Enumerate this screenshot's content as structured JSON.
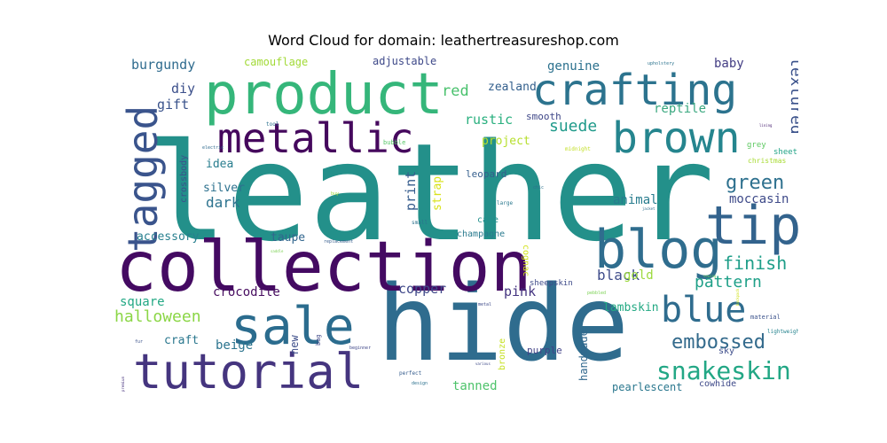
{
  "chart_data": {
    "type": "wordcloud",
    "title": "Word Cloud for domain: leathertreasureshop.com",
    "words": [
      {
        "text": "leather",
        "weight": 1.0,
        "color": "#23908a"
      },
      {
        "text": "hide",
        "weight": 0.72,
        "color": "#2f6c8e"
      },
      {
        "text": "collection",
        "weight": 0.46,
        "color": "#440a62"
      },
      {
        "text": "product",
        "weight": 0.38,
        "color": "#35b67a"
      },
      {
        "text": "crafting",
        "weight": 0.26,
        "color": "#2c738e"
      },
      {
        "text": "tutorial",
        "weight": 0.26,
        "color": "#45357f"
      },
      {
        "text": "sale",
        "weight": 0.3,
        "color": "#2b6c8e"
      },
      {
        "text": "metallic",
        "weight": 0.2,
        "color": "#45085d"
      },
      {
        "text": "brown",
        "weight": 0.22,
        "color": "#25858e"
      },
      {
        "text": "blog",
        "weight": 0.27,
        "color": "#2f6d8e"
      },
      {
        "text": "tip",
        "weight": 0.25,
        "color": "#33638d"
      },
      {
        "text": "tagged",
        "weight": 0.21,
        "color": "#3a548c"
      },
      {
        "text": "blue",
        "weight": 0.17,
        "color": "#2f6c8e"
      },
      {
        "text": "snakeskin",
        "weight": 0.12,
        "color": "#22a785"
      },
      {
        "text": "embossed",
        "weight": 0.11,
        "color": "#336a8c"
      },
      {
        "text": "finish",
        "weight": 0.1,
        "color": "#1f9e89"
      },
      {
        "text": "pattern",
        "weight": 0.09,
        "color": "#1fa088"
      },
      {
        "text": "green",
        "weight": 0.09,
        "color": "#2d708e"
      },
      {
        "text": "moccasin",
        "weight": 0.07,
        "color": "#3e4a89"
      },
      {
        "text": "textured",
        "weight": 0.08,
        "color": "#3b528b"
      },
      {
        "text": "suede",
        "weight": 0.08,
        "color": "#1f9a8a"
      },
      {
        "text": "reptile",
        "weight": 0.06,
        "color": "#3ba880"
      },
      {
        "text": "baby",
        "weight": 0.06,
        "color": "#433d84"
      },
      {
        "text": "genuine",
        "weight": 0.06,
        "color": "#2c718e"
      },
      {
        "text": "red",
        "weight": 0.07,
        "color": "#49c16d"
      },
      {
        "text": "rustic",
        "weight": 0.06,
        "color": "#2ab07f"
      },
      {
        "text": "zealand",
        "weight": 0.05,
        "color": "#34608d"
      },
      {
        "text": "smooth",
        "weight": 0.04,
        "color": "#3f4788"
      },
      {
        "text": "project",
        "weight": 0.05,
        "color": "#b5de2b"
      },
      {
        "text": "camouflage",
        "weight": 0.05,
        "color": "#a2da37"
      },
      {
        "text": "adjustable",
        "weight": 0.04,
        "color": "#3e4989"
      },
      {
        "text": "burgundy",
        "weight": 0.06,
        "color": "#2f6b8e"
      },
      {
        "text": "diy",
        "weight": 0.06,
        "color": "#3c508b"
      },
      {
        "text": "gift",
        "weight": 0.06,
        "color": "#3a538b"
      },
      {
        "text": "idea",
        "weight": 0.05,
        "color": "#287d8e"
      },
      {
        "text": "silver",
        "weight": 0.05,
        "color": "#2d718e"
      },
      {
        "text": "dark",
        "weight": 0.06,
        "color": "#2c728e"
      },
      {
        "text": "accessory",
        "weight": 0.05,
        "color": "#277f8e"
      },
      {
        "text": "taupe",
        "weight": 0.05,
        "color": "#31668e"
      },
      {
        "text": "print",
        "weight": 0.06,
        "color": "#365c8d"
      },
      {
        "text": "strap",
        "weight": 0.05,
        "color": "#d8e219"
      },
      {
        "text": "crossbody",
        "weight": 0.03,
        "color": "#3b518b"
      },
      {
        "text": "animal",
        "weight": 0.05,
        "color": "#287c8e"
      },
      {
        "text": "leopard",
        "weight": 0.03,
        "color": "#355f8d"
      },
      {
        "text": "cafe",
        "weight": 0.03,
        "color": "#22908d"
      },
      {
        "text": "champagne",
        "weight": 0.03,
        "color": "#297a8e"
      },
      {
        "text": "cognac",
        "weight": 0.03,
        "color": "#d2e21b"
      },
      {
        "text": "black",
        "weight": 0.07,
        "color": "#3e4c8a"
      },
      {
        "text": "gold",
        "weight": 0.06,
        "color": "#9bd93c"
      },
      {
        "text": "copper",
        "weight": 0.06,
        "color": "#3f4889"
      },
      {
        "text": "pink",
        "weight": 0.06,
        "color": "#453581"
      },
      {
        "text": "square",
        "weight": 0.06,
        "color": "#22a884"
      },
      {
        "text": "crocodile",
        "weight": 0.05,
        "color": "#470d60"
      },
      {
        "text": "halloween",
        "weight": 0.08,
        "color": "#8bd646"
      },
      {
        "text": "craft",
        "weight": 0.05,
        "color": "#2a778e"
      },
      {
        "text": "beige",
        "weight": 0.06,
        "color": "#2b748e"
      },
      {
        "text": "new",
        "weight": 0.05,
        "color": "#3d4e8a"
      },
      {
        "text": "lambskin",
        "weight": 0.05,
        "color": "#23a983"
      },
      {
        "text": "handmade",
        "weight": 0.05,
        "color": "#30678d"
      },
      {
        "text": "sheepskin",
        "weight": 0.03,
        "color": "#3e4a89"
      },
      {
        "text": "purple",
        "weight": 0.04,
        "color": "#414287"
      },
      {
        "text": "bronze",
        "weight": 0.03,
        "color": "#c5e021"
      },
      {
        "text": "tanned",
        "weight": 0.06,
        "color": "#4ec36b"
      },
      {
        "text": "pearlescent",
        "weight": 0.05,
        "color": "#2a778e"
      },
      {
        "text": "cowhide",
        "weight": 0.04,
        "color": "#3e4989"
      },
      {
        "text": "sky",
        "weight": 0.04,
        "color": "#3d4d8a"
      },
      {
        "text": "grey",
        "weight": 0.03,
        "color": "#5ec962"
      },
      {
        "text": "sheet",
        "weight": 0.03,
        "color": "#20a386"
      },
      {
        "text": "christmas",
        "weight": 0.03,
        "color": "#a8db34"
      },
      {
        "text": "lightweight",
        "weight": 0.02,
        "color": "#25838e"
      },
      {
        "text": "material",
        "weight": 0.02,
        "color": "#3b528b"
      },
      {
        "text": "midnight",
        "weight": 0.02,
        "color": "#c2df23"
      },
      {
        "text": "bubble",
        "weight": 0.02,
        "color": "#56c667"
      },
      {
        "text": "tool",
        "weight": 0.02,
        "color": "#2d718e"
      },
      {
        "text": "replacement",
        "weight": 0.02,
        "color": "#365d8d"
      },
      {
        "text": "electric",
        "weight": 0.02,
        "color": "#306a8e"
      },
      {
        "text": "upholstery",
        "weight": 0.015,
        "color": "#2c738e"
      },
      {
        "text": "bag",
        "weight": 0.03,
        "color": "#3f4788"
      },
      {
        "text": "small",
        "weight": 0.02,
        "color": "#2c728e"
      },
      {
        "text": "large",
        "weight": 0.02,
        "color": "#2a788e"
      },
      {
        "text": "chic",
        "weight": 0.015,
        "color": "#2d718e"
      },
      {
        "text": "perfect",
        "weight": 0.02,
        "color": "#365d8d"
      },
      {
        "text": "design",
        "weight": 0.02,
        "color": "#2c718e"
      },
      {
        "text": "metal",
        "weight": 0.015,
        "color": "#3e4a89"
      },
      {
        "text": "pebbled",
        "weight": 0.015,
        "color": "#7ad151"
      },
      {
        "text": "fur",
        "weight": 0.015,
        "color": "#3b528b"
      },
      {
        "text": "beginner",
        "weight": 0.015,
        "color": "#3f4788"
      },
      {
        "text": "buy",
        "weight": 0.015,
        "color": "#a0da39"
      },
      {
        "text": "saddle",
        "weight": 0.01,
        "color": "#7ad151"
      },
      {
        "text": "various",
        "weight": 0.01,
        "color": "#3e4989"
      },
      {
        "text": "premium",
        "weight": 0.01,
        "color": "#46327e"
      },
      {
        "text": "sewing",
        "weight": 0.01,
        "color": "#65cb5e"
      },
      {
        "text": "lining",
        "weight": 0.01,
        "color": "#482071"
      },
      {
        "text": "jacket",
        "weight": 0.01,
        "color": "#2e6e8e"
      },
      {
        "text": "backpack",
        "weight": 0.01,
        "color": "#d0e11c"
      }
    ]
  }
}
